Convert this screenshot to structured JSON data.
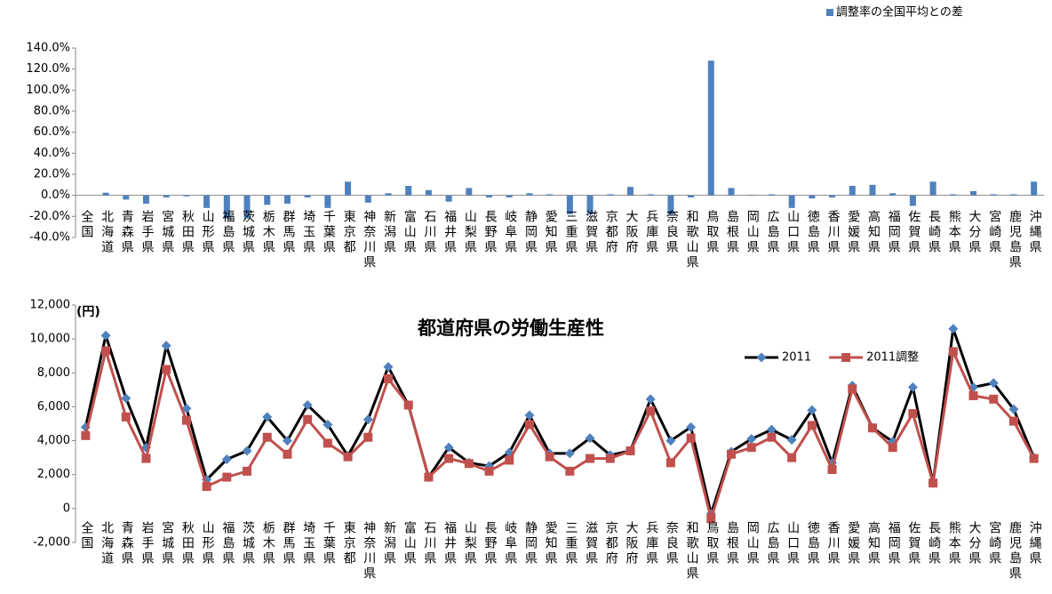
{
  "chart_data": [
    {
      "type": "bar",
      "categories": [
        "全国",
        "北海道",
        "青森県",
        "岩手県",
        "宮城県",
        "秋田県",
        "山形県",
        "福島県",
        "茨城県",
        "栃木県",
        "群馬県",
        "埼玉県",
        "千葉県",
        "東京都",
        "神奈川県",
        "新潟県",
        "富山県",
        "石川県",
        "福井県",
        "山梨県",
        "長野県",
        "岐阜県",
        "静岡県",
        "愛知県",
        "三重県",
        "滋賀県",
        "京都府",
        "大阪府",
        "兵庫県",
        "奈良県",
        "和歌山県",
        "鳥取県",
        "島根県",
        "岡山県",
        "広島県",
        "山口県",
        "徳島県",
        "香川県",
        "愛媛県",
        "高知県",
        "福岡県",
        "佐賀県",
        "長崎県",
        "熊本県",
        "大分県",
        "宮崎県",
        "鹿児島県",
        "沖縄県"
      ],
      "series": [
        {
          "name": "調整率の全国平均との差",
          "color": "#4f81bd",
          "values": [
            0,
            2.5,
            -4,
            -8,
            -2,
            -1,
            -12,
            -22,
            -22,
            -9,
            -8,
            -2,
            -12,
            13,
            -7,
            2,
            9,
            5,
            -6,
            7,
            -2,
            -2,
            2,
            1,
            -18,
            -18,
            1,
            8,
            1,
            -18,
            -2,
            128,
            7,
            0.5,
            1,
            -12,
            -3,
            -2,
            9,
            10,
            2,
            -10,
            13,
            1,
            4,
            1,
            1,
            13
          ]
        }
      ],
      "ylim": [
        -40,
        140
      ],
      "yticks": [
        {
          "value": -40,
          "label": "-40.0%"
        },
        {
          "value": -20,
          "label": "-20.0%"
        },
        {
          "value": 0,
          "label": "0.0%"
        },
        {
          "value": 20,
          "label": "20.0%"
        },
        {
          "value": 40,
          "label": "40.0%"
        },
        {
          "value": 60,
          "label": "60.0%"
        },
        {
          "value": 80,
          "label": "80.0%"
        },
        {
          "value": 100,
          "label": "100.0%"
        },
        {
          "value": 120,
          "label": "120.0%"
        },
        {
          "value": 140,
          "label": "140.0%"
        }
      ],
      "grid": false,
      "legend": "top-right"
    },
    {
      "type": "line",
      "title": "都道府県の労働生産性",
      "y_label": "(円)",
      "categories": [
        "全国",
        "北海道",
        "青森県",
        "岩手県",
        "宮城県",
        "秋田県",
        "山形県",
        "福島県",
        "茨城県",
        "栃木県",
        "群馬県",
        "埼玉県",
        "千葉県",
        "東京都",
        "神奈川県",
        "新潟県",
        "富山県",
        "石川県",
        "福井県",
        "山梨県",
        "長野県",
        "岐阜県",
        "静岡県",
        "愛知県",
        "三重県",
        "滋賀県",
        "京都府",
        "大阪府",
        "兵庫県",
        "奈良県",
        "和歌山県",
        "鳥取県",
        "島根県",
        "岡山県",
        "広島県",
        "山口県",
        "徳島県",
        "香川県",
        "愛媛県",
        "高知県",
        "福岡県",
        "佐賀県",
        "長崎県",
        "熊本県",
        "大分県",
        "宮崎県",
        "鹿児島県",
        "沖縄県"
      ],
      "series": [
        {
          "name": "2011",
          "color": "#000000",
          "marker_color": "#4f81bd",
          "marker": "diamond",
          "values": [
            4800,
            10200,
            6500,
            3600,
            9600,
            5900,
            1700,
            2900,
            3400,
            5400,
            4000,
            6100,
            4950,
            3100,
            5250,
            8350,
            6100,
            1850,
            3600,
            2700,
            2500,
            3300,
            5500,
            3250,
            3250,
            4150,
            3150,
            3400,
            6450,
            4000,
            4800,
            -300,
            3350,
            4100,
            4650,
            4050,
            5800,
            2700,
            7250,
            4750,
            3950,
            7150,
            1500,
            10600,
            7150,
            7400,
            5850,
            3000
          ]
        },
        {
          "name": "2011調整",
          "color": "#c0504d",
          "marker_color": "#c0504d",
          "marker": "square",
          "values": [
            4300,
            9300,
            5400,
            2950,
            8200,
            5200,
            1300,
            1850,
            2200,
            4200,
            3200,
            5250,
            3850,
            3050,
            4200,
            7650,
            6100,
            1850,
            2950,
            2650,
            2200,
            2850,
            4950,
            3050,
            2200,
            2950,
            2950,
            3400,
            5750,
            2700,
            4150,
            -600,
            3200,
            3600,
            4200,
            3000,
            4900,
            2300,
            7050,
            4750,
            3600,
            5600,
            1500,
            9250,
            6650,
            6450,
            5150,
            2950
          ]
        }
      ],
      "ylim": [
        -2000,
        12000
      ],
      "yticks": [
        {
          "value": -2000,
          "label": "-2,000"
        },
        0,
        {
          "value": 2000,
          "label": "2,000"
        },
        {
          "value": 4000,
          "label": "4,000"
        },
        {
          "value": 6000,
          "label": "6,000"
        },
        {
          "value": 8000,
          "label": "8,000"
        },
        {
          "value": 10000,
          "label": "10,000"
        },
        {
          "value": 12000,
          "label": "12,000"
        }
      ],
      "grid": false,
      "legend": "top-right"
    }
  ]
}
